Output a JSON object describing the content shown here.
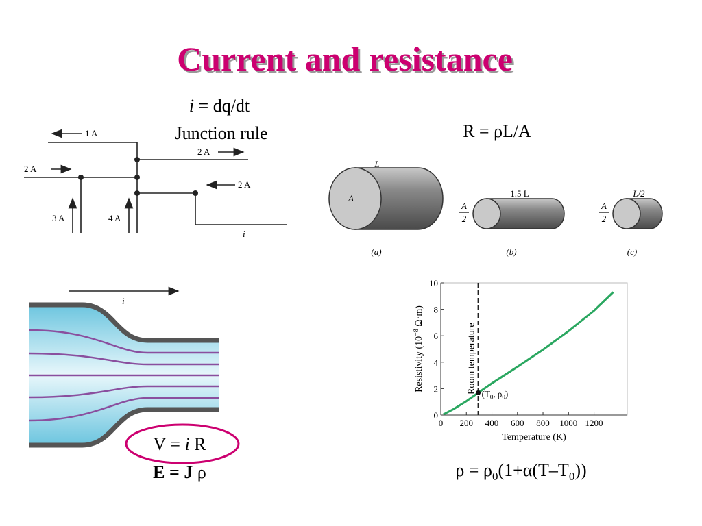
{
  "title": "Current and resistance",
  "junction": {
    "caption": [
      "i",
      " = dq/dt"
    ],
    "rule": "Junction rule",
    "labels": [
      "1 A",
      "2 A",
      "2 A",
      "2 A",
      "3 A",
      "4 A",
      "i"
    ]
  },
  "resistance": {
    "formula": "R = ρL/A",
    "a": {
      "length": "L",
      "area": "A",
      "caption": "(a)"
    },
    "b": {
      "length": "1.5 L",
      "area": [
        "A",
        "2"
      ],
      "caption": "(b)"
    },
    "c": {
      "length": "L/2",
      "area": [
        "A",
        "2"
      ],
      "caption": "(c)"
    }
  },
  "flow": {
    "current": "i",
    "ohm": [
      "V = ",
      "i",
      " R"
    ],
    "field": [
      "E = J",
      " ρ"
    ]
  },
  "chart_data": {
    "type": "line",
    "x_label": "Temperature (K)",
    "y_label": [
      "Resistivity (10",
      "−8",
      " Ω·m)"
    ],
    "annotation": "Room temperature",
    "point_label": [
      "(T",
      "0",
      ", ρ",
      "0",
      ")"
    ],
    "reference": {
      "x": 293,
      "y": 1.69
    },
    "x": [
      20,
      100,
      200,
      293,
      400,
      600,
      800,
      1000,
      1200,
      1350
    ],
    "series": [
      {
        "color": "#2aa760",
        "values": [
          0.05,
          0.45,
          1.05,
          1.69,
          2.4,
          3.65,
          4.95,
          6.35,
          7.9,
          9.3
        ]
      }
    ],
    "xlim": [
      0,
      1460
    ],
    "ylim": [
      0,
      10
    ],
    "xticks": [
      0,
      200,
      400,
      600,
      800,
      1000,
      1200
    ],
    "yticks": [
      0,
      2,
      4,
      6,
      8,
      10
    ],
    "formula": [
      "ρ = ρ",
      "0",
      "(1+α(T–T",
      "0",
      "))"
    ]
  }
}
